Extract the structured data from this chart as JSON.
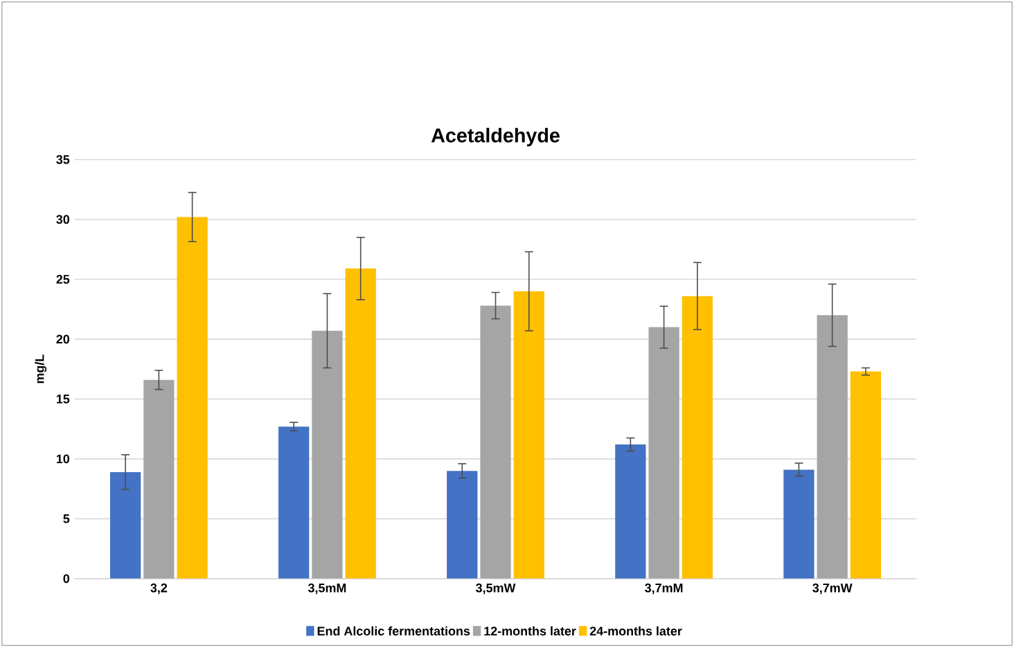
{
  "chart_data": {
    "type": "bar",
    "title": "Acetaldehyde",
    "ylabel": "mg/L",
    "categories": [
      "3,2",
      "3,5mM",
      "3,5mW",
      "3,7mM",
      "3,7mW"
    ],
    "series": [
      {
        "name": "End Alcolic fermentations",
        "color": "#4472c4",
        "values": [
          8.9,
          12.7,
          9.0,
          11.2,
          9.1
        ],
        "errors": [
          1.45,
          0.35,
          0.6,
          0.55,
          0.55
        ]
      },
      {
        "name": "12-months later",
        "color": "#a5a5a5",
        "values": [
          16.6,
          20.7,
          22.8,
          21.0,
          22.0
        ],
        "errors": [
          0.8,
          3.1,
          1.1,
          1.75,
          2.6
        ]
      },
      {
        "name": "24-months later",
        "color": "#ffc000",
        "values": [
          30.2,
          25.9,
          24.0,
          23.6,
          17.3
        ],
        "errors": [
          2.05,
          2.6,
          3.3,
          2.8,
          0.3
        ]
      }
    ],
    "ylim": [
      0,
      35
    ],
    "yticks": [
      0,
      5,
      10,
      15,
      20,
      25,
      30,
      35
    ],
    "grid": "y",
    "legend": "bottom"
  }
}
